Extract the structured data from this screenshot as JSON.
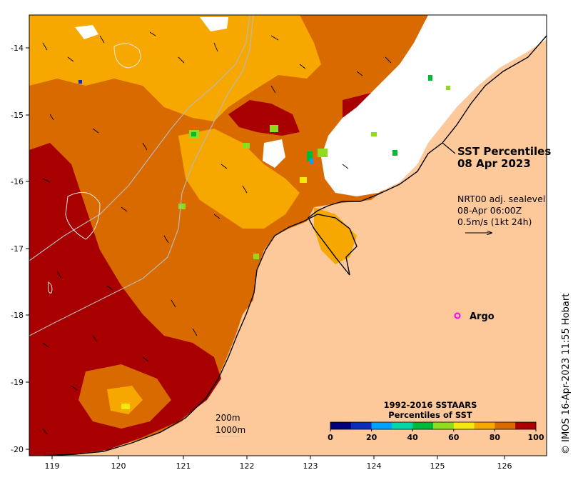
{
  "map": {
    "title_line1": "SST Percentiles",
    "title_line2": "08 Apr 2023",
    "info_line1": "NRT00 adj. sealevel",
    "info_line2": "08-Apr 06:00Z",
    "info_line3": "0.5m/s (1kt 24h)",
    "argo_label": "Argo",
    "depth_label_1": "200m",
    "depth_label_2": "1000m",
    "credit": "© IMOS 16-Apr-2023 11:55 Hobart",
    "lon_ticks": [
      "119",
      "120",
      "121",
      "122",
      "123",
      "124",
      "125",
      "126"
    ],
    "lat_ticks": [
      "-14",
      "-15",
      "-16",
      "-17",
      "-18",
      "-19",
      "-20"
    ],
    "colorbar": {
      "title_line1": "1992-2016 SSTAARS",
      "title_line2": "Percentiles of SST",
      "ticks": [
        "0",
        "20",
        "40",
        "60",
        "80",
        "100"
      ],
      "colors": [
        "#00007a",
        "#0a2ebb",
        "#00a2ff",
        "#00d6a8",
        "#00b83a",
        "#8fdb1f",
        "#f5e80c",
        "#f6a800",
        "#d86a00",
        "#a80000"
      ]
    },
    "colors": {
      "land": "#fdc99a",
      "cloud": "#ffffff",
      "sst_dark_red": "#a80000",
      "sst_dark_orange": "#d86a00",
      "sst_orange": "#f6a800",
      "sst_yellow": "#f5e80c",
      "argo_marker": "#ff00ff"
    }
  }
}
